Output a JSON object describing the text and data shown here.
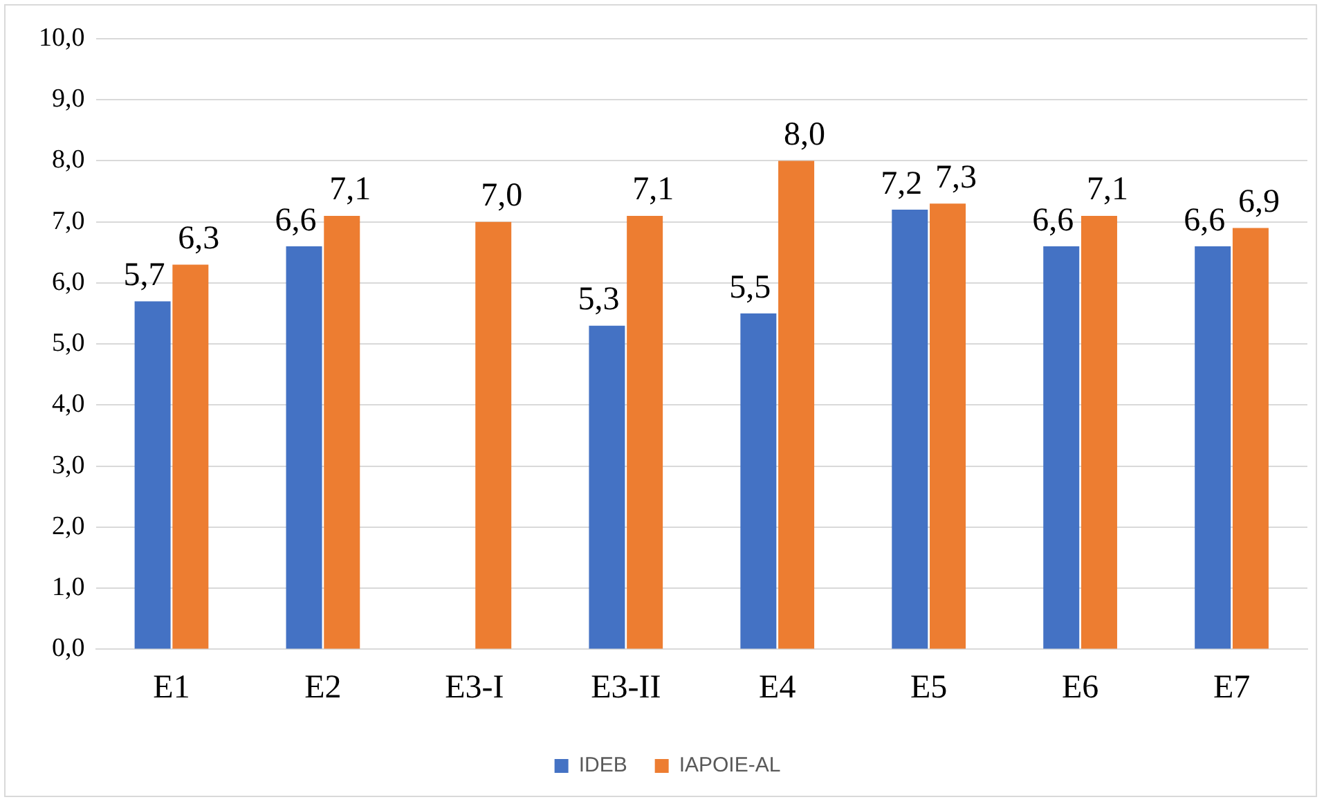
{
  "chart_data": {
    "type": "bar",
    "categories": [
      "E1",
      "E2",
      "E3-I",
      "E3-II",
      "E4",
      "E5",
      "E6",
      "E7"
    ],
    "series": [
      {
        "name": "IDEB",
        "color": "#4472c4",
        "values": [
          5.7,
          6.6,
          null,
          5.3,
          5.5,
          7.2,
          6.6,
          6.6
        ],
        "value_labels": [
          "5,7",
          "6,6",
          null,
          "5,3",
          "5,5",
          "7,2",
          "6,6",
          "6,6"
        ]
      },
      {
        "name": "IAPOIE-AL",
        "color": "#ed7d31",
        "values": [
          6.3,
          7.1,
          7.0,
          7.1,
          8.0,
          7.3,
          7.1,
          6.9
        ],
        "value_labels": [
          "6,3",
          "7,1",
          "7,0",
          "7,1",
          "8,0",
          "7,3",
          "7,1",
          "6,9"
        ]
      }
    ],
    "ylim": [
      0,
      10
    ],
    "yticks": [
      {
        "value": 0,
        "label": "0,0"
      },
      {
        "value": 1,
        "label": "1,0"
      },
      {
        "value": 2,
        "label": "2,0"
      },
      {
        "value": 3,
        "label": "3,0"
      },
      {
        "value": 4,
        "label": "4,0"
      },
      {
        "value": 5,
        "label": "5,0"
      },
      {
        "value": 6,
        "label": "6,0"
      },
      {
        "value": 7,
        "label": "7,0"
      },
      {
        "value": 8,
        "label": "8,0"
      },
      {
        "value": 9,
        "label": "9,0"
      },
      {
        "value": 10,
        "label": "10,0"
      }
    ],
    "grid": "y",
    "legend": "bottom"
  }
}
